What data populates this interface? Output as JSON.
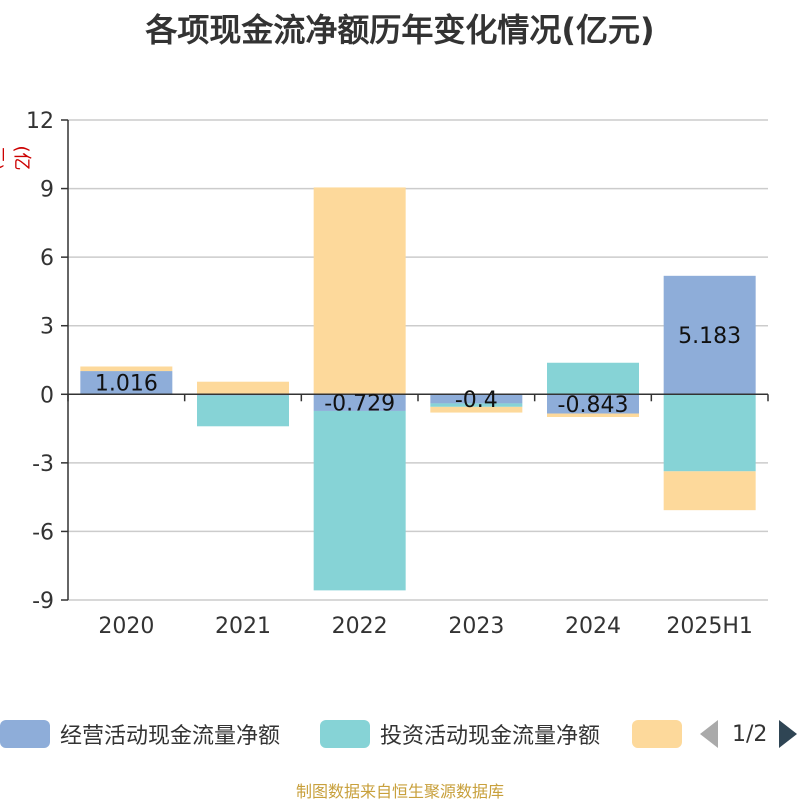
{
  "title": "各项现金流净额历年变化情况(亿元)",
  "unit_label": "(亿元)",
  "colors": {
    "operating": "#8eadd9",
    "investing": "#86d3d6",
    "financing": "#fdd99b",
    "unit": "#cc0000",
    "source": "#c8a03c",
    "axis": "#333333",
    "grid": "#cccccc"
  },
  "legend": {
    "items": [
      {
        "label": "经营活动现金流量净额"
      },
      {
        "label": "投资活动现金流量净额"
      },
      {
        "label": ""
      }
    ],
    "page": "1/2",
    "prev_icon": "triangle-left-icon",
    "next_icon": "triangle-right-icon"
  },
  "source": "制图数据来自恒生聚源数据库",
  "chart_data": {
    "type": "bar",
    "stacked": true,
    "categories": [
      "2020",
      "2021",
      "2022",
      "2023",
      "2024",
      "2025H1"
    ],
    "ylim": [
      -9,
      12
    ],
    "yticks": [
      -9,
      -6,
      -3,
      0,
      3,
      6,
      9,
      12
    ],
    "ylabel": "(亿元)",
    "grid": true,
    "legend_position": "bottom",
    "series": [
      {
        "name": "经营活动现金流量净额",
        "values": [
          1.016,
          -0.05,
          -0.729,
          -0.4,
          -0.843,
          5.183
        ],
        "labels": [
          "1.016",
          "",
          "-0.729",
          "-0.4",
          "-0.843",
          "5.183"
        ]
      },
      {
        "name": "投资活动现金流量净额",
        "values": [
          0.0,
          -1.35,
          -7.85,
          -0.15,
          1.38,
          -3.37
        ]
      },
      {
        "values": [
          0.2,
          0.55,
          9.05,
          -0.25,
          -0.15,
          -1.7
        ]
      }
    ]
  }
}
